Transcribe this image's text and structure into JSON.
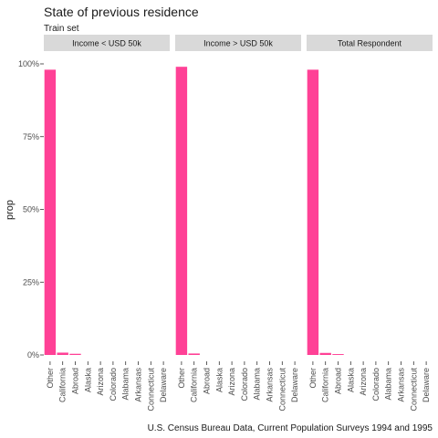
{
  "chart_data": {
    "type": "bar",
    "title": "State of previous residence",
    "subtitle": "Train set",
    "caption": "U.S. Census Bureau Data, Current Population Surveys 1994 and 1995",
    "xlabel": "",
    "ylabel": "prop",
    "ylim": [
      0,
      1
    ],
    "yticks": [
      "0%",
      "25%",
      "50%",
      "75%",
      "100%"
    ],
    "bar_color": "#ff4196",
    "categories": [
      "Other",
      "California",
      "Abroad",
      "Alaska",
      "Arizona",
      "Colorado",
      "Alabama",
      "Arkansas",
      "Connecticut",
      "Delaware"
    ],
    "panels": [
      {
        "name": "Income < USD 50k",
        "values": [
          0.98,
          0.008,
          0.004,
          0,
          0,
          0,
          0,
          0,
          0,
          0
        ]
      },
      {
        "name": "Income > USD 50k",
        "values": [
          0.99,
          0.005,
          0,
          0,
          0,
          0,
          0,
          0,
          0,
          0
        ]
      },
      {
        "name": "Total Respondent",
        "values": [
          0.98,
          0.007,
          0.003,
          0,
          0,
          0,
          0,
          0,
          0,
          0
        ]
      }
    ]
  }
}
